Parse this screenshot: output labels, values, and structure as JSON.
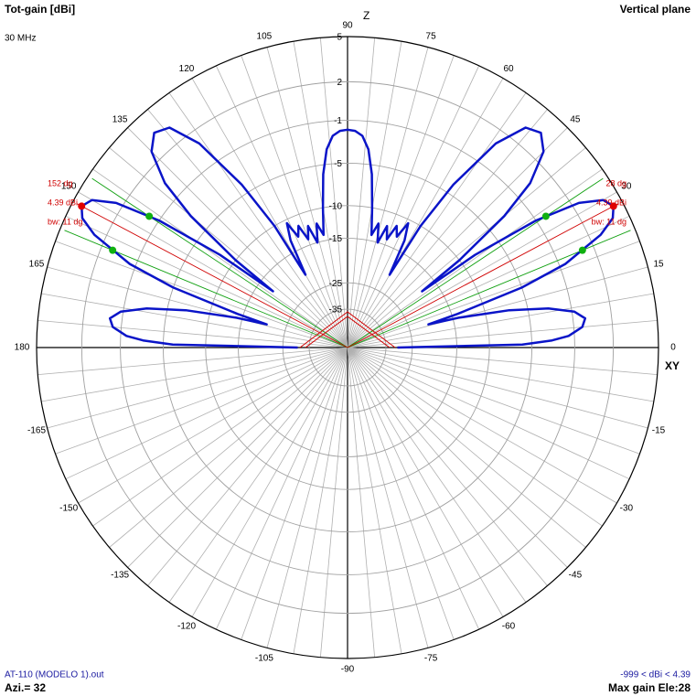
{
  "chart_data": {
    "type": "polar",
    "title": "Tot-gain [dBi]",
    "subtitle": "30 MHz",
    "plane_label": "Vertical plane",
    "z_label": "Z",
    "xy_label": "XY",
    "file_label": "AT-110 (MODELO 1).out",
    "azimuth_label": "Azi.= 32",
    "range_label": "-999 < dBi < 4.39",
    "max_gain_label": "Max gain Ele:28",
    "rlim": [
      -40,
      5
    ],
    "rticks": [
      5,
      2,
      -1,
      -5,
      -10,
      -15,
      -25,
      -35
    ],
    "angle_grid_step": 5,
    "angle_ticks": [
      0,
      15,
      30,
      45,
      60,
      75,
      90,
      105,
      120,
      135,
      150,
      165,
      180,
      -165,
      -150,
      -135,
      -120,
      -105,
      -90,
      -75,
      -60,
      -45,
      -30,
      -15
    ],
    "series": [
      {
        "name": "Tot-gain",
        "color": "#0a14c8",
        "x": [
          0,
          1,
          2,
          3,
          5,
          7,
          9,
          11,
          13,
          15,
          16,
          17,
          19,
          21,
          24,
          26,
          28,
          30,
          32,
          34,
          36,
          37,
          38,
          40,
          42,
          45,
          48,
          51,
          54,
          57,
          59,
          60,
          62,
          64,
          66,
          68,
          70,
          72,
          74,
          76,
          78,
          80,
          82,
          84,
          86,
          88,
          90,
          92,
          94,
          96,
          98,
          100,
          102,
          104,
          106,
          108,
          110,
          112,
          114,
          116,
          118,
          120,
          121,
          123,
          126,
          129,
          132,
          135,
          138,
          140,
          142,
          143,
          144,
          146,
          148,
          150,
          152,
          154,
          156,
          159,
          161,
          163,
          164,
          165,
          167,
          169,
          171,
          173,
          175,
          177,
          178,
          179,
          180
        ],
        "values": [
          -30,
          -6,
          -3,
          -1.5,
          -0.3,
          0,
          -0.8,
          -3,
          -7,
          -14,
          -20,
          -14,
          -5,
          -0.5,
          2.8,
          4,
          4.39,
          4,
          2.5,
          -1,
          -8,
          -18,
          -10,
          -3,
          0.5,
          2.8,
          3.6,
          3.2,
          1,
          -4,
          -10,
          -20,
          -13,
          -10.5,
          -13,
          -11.5,
          -14,
          -12,
          -15,
          -12,
          -14,
          -10,
          -6,
          -3.5,
          -2.3,
          -1.9,
          -1.8,
          -1.9,
          -2.3,
          -3.5,
          -6,
          -10,
          -14,
          -12,
          -15,
          -12,
          -14,
          -11.5,
          -13,
          -10.5,
          -13,
          -20,
          -10,
          -4,
          1,
          3.2,
          3.6,
          2.8,
          0.5,
          -3,
          -10,
          -18,
          -8,
          -1,
          2.5,
          4,
          4.39,
          4,
          2.8,
          -0.5,
          -5,
          -14,
          -20,
          -14,
          -7,
          -3,
          -0.8,
          0,
          -0.3,
          -1.5,
          -3,
          -6,
          -30
        ]
      }
    ],
    "markers": [
      {
        "angle": {
          "value": 152,
          "label": "152 dg"
        },
        "gain": {
          "value": 4.39,
          "label": "4.39 dBi"
        },
        "bw": {
          "value": 11,
          "label": "bw: 11 dg"
        }
      },
      {
        "angle": {
          "value": 28,
          "label": "28 dg"
        },
        "gain": {
          "value": 4.39,
          "label": "4.39 dBi"
        },
        "bw": {
          "value": 11,
          "label": "bw: 11 dg"
        }
      }
    ]
  }
}
